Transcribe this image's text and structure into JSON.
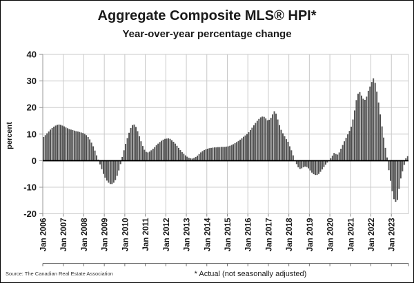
{
  "header": {
    "title": "Aggregate Composite MLS® HPI*",
    "subtitle": "Year-over-year percentage change"
  },
  "footer": {
    "source": "Source: The Canadian Real Estate Association",
    "note": "* Actual (not seasonally adjusted)"
  },
  "chart_data": {
    "type": "bar",
    "title": "Aggregate Composite MLS® HPI*",
    "subtitle": "Year-over-year percentage change",
    "xlabel": "",
    "ylabel": "percent",
    "ylim": [
      -20,
      40
    ],
    "ytick_interval": 10,
    "grid": true,
    "legend": "none",
    "bar_color_dark": "#0d0d0d",
    "bar_color_mid": "#777777",
    "grid_color": "#c8c8c8",
    "zero_line_color": "#000000",
    "months_per_tick": 12,
    "x_tick_labels": [
      "Jan 2006",
      "Jan 2007",
      "Jan 2008",
      "Jan 2009",
      "Jan 2010",
      "Jan 2011",
      "Jan 2012",
      "Jan 2013",
      "Jan 2014",
      "Jan 2015",
      "Jan 2016",
      "Jan 2017",
      "Jan 2018",
      "Jan 2019",
      "Jan 2020",
      "Jan 2021",
      "Jan 2022",
      "Jan 2023"
    ],
    "values": [
      8.9,
      9.6,
      10.3,
      11.0,
      11.7,
      12.3,
      12.8,
      13.2,
      13.5,
      13.6,
      13.5,
      13.2,
      12.9,
      12.5,
      12.2,
      11.9,
      11.7,
      11.5,
      11.3,
      11.1,
      11.0,
      10.8,
      10.6,
      10.4,
      10.1,
      9.6,
      8.9,
      8.0,
      6.8,
      5.4,
      3.8,
      2.0,
      0.4,
      -1.4,
      -3.2,
      -5.0,
      -6.4,
      -7.5,
      -8.3,
      -8.8,
      -8.8,
      -8.3,
      -7.3,
      -5.7,
      -3.7,
      -1.3,
      1.4,
      3.9,
      6.3,
      8.5,
      10.5,
      12.3,
      13.4,
      13.6,
      12.7,
      11.1,
      9.2,
      7.3,
      5.5,
      4.1,
      3.3,
      3.1,
      3.4,
      3.9,
      4.5,
      5.1,
      5.8,
      6.4,
      7.0,
      7.5,
      7.9,
      8.2,
      8.3,
      8.4,
      8.2,
      7.7,
      7.1,
      6.4,
      5.6,
      4.8,
      4.0,
      3.2,
      2.6,
      2.0,
      1.5,
      1.1,
      0.9,
      0.8,
      1.0,
      1.4,
      1.9,
      2.5,
      3.1,
      3.6,
      4.0,
      4.3,
      4.5,
      4.7,
      4.8,
      4.9,
      5.0,
      5.0,
      5.1,
      5.1,
      5.2,
      5.2,
      5.2,
      5.3,
      5.4,
      5.6,
      5.9,
      6.2,
      6.6,
      7.0,
      7.4,
      7.9,
      8.4,
      9.0,
      9.5,
      10.0,
      10.7,
      11.5,
      12.4,
      13.3,
      14.2,
      15.0,
      15.7,
      16.3,
      16.6,
      16.5,
      15.9,
      15.2,
      15.4,
      16.1,
      17.4,
      18.6,
      17.7,
      15.5,
      13.4,
      11.6,
      10.3,
      9.2,
      8.1,
      7.1,
      5.4,
      3.9,
      2.0,
      0.2,
      -1.3,
      -2.5,
      -3.1,
      -2.9,
      -2.5,
      -2.2,
      -2.4,
      -2.9,
      -3.7,
      -4.5,
      -5.1,
      -5.4,
      -5.4,
      -5.0,
      -4.2,
      -3.3,
      -2.4,
      -1.5,
      -0.7,
      -0.1,
      0.9,
      1.9,
      2.9,
      2.5,
      2.3,
      3.1,
      4.5,
      5.9,
      7.3,
      8.6,
      9.9,
      11.2,
      12.8,
      15.5,
      18.9,
      22.8,
      25.2,
      25.8,
      24.5,
      23.3,
      22.9,
      24.1,
      26.3,
      27.9,
      29.6,
      31.0,
      29.3,
      26.0,
      21.9,
      17.4,
      12.9,
      8.7,
      4.8,
      1.2,
      -3.6,
      -7.6,
      -11.5,
      -14.5,
      -15.5,
      -14.8,
      -10.6,
      -6.7,
      -4.0,
      -1.6,
      0.9,
      1.7
    ]
  }
}
